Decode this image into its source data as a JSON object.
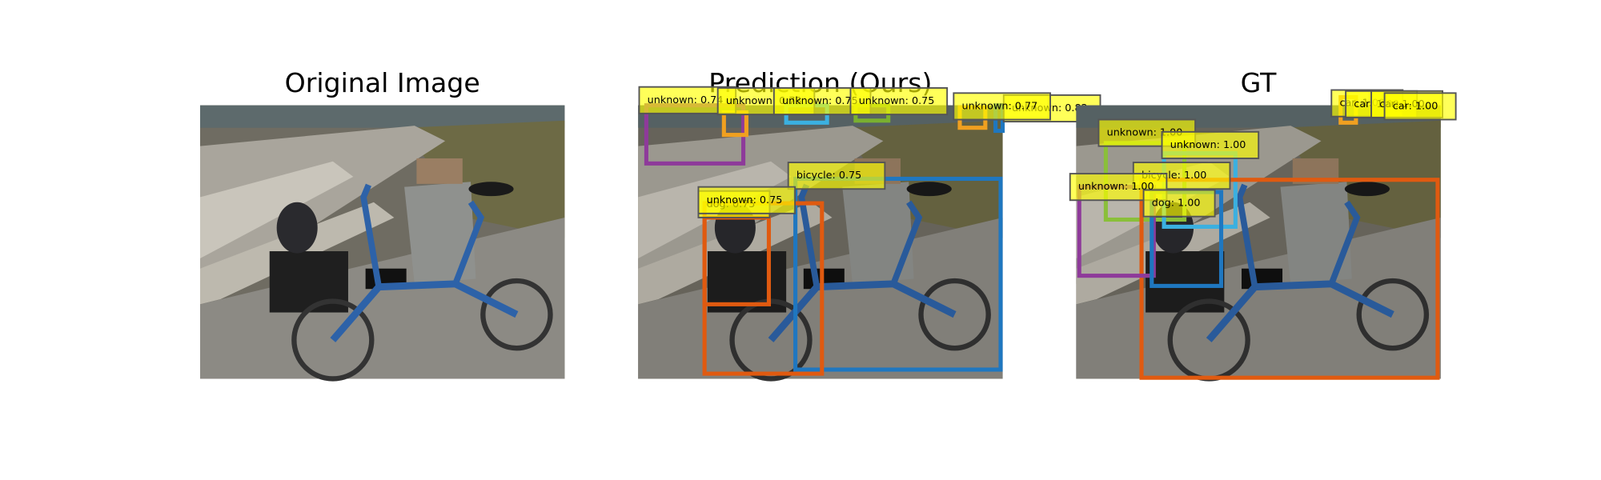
{
  "panels": [
    {
      "title": "Original Image",
      "boxes": []
    },
    {
      "title": "Prediction (Ours)",
      "boxes": [
        {
          "label": "unknown: 0.74"
        },
        {
          "label": "unknown: 0.73"
        },
        {
          "label": "unknown: 0.75"
        },
        {
          "label": "unknown: 0.75"
        },
        {
          "label": "unknown: 0.82"
        },
        {
          "label": "unknown: 0.77"
        },
        {
          "label": "bicycle: 0.75"
        },
        {
          "label": "dog: 0.75"
        },
        {
          "label": "unknown: 0.75"
        }
      ]
    },
    {
      "title": "GT",
      "boxes": [
        {
          "label": "car: 1.00"
        },
        {
          "label": "car: 1.00"
        },
        {
          "label": "car: 1.00"
        },
        {
          "label": "car: 1.00"
        },
        {
          "label": "unknown: 1.00"
        },
        {
          "label": "unknown: 1.00"
        },
        {
          "label": "bicycle: 1.00"
        },
        {
          "label": "unknown: 1.00"
        },
        {
          "label": "dog: 1.00"
        }
      ]
    }
  ]
}
